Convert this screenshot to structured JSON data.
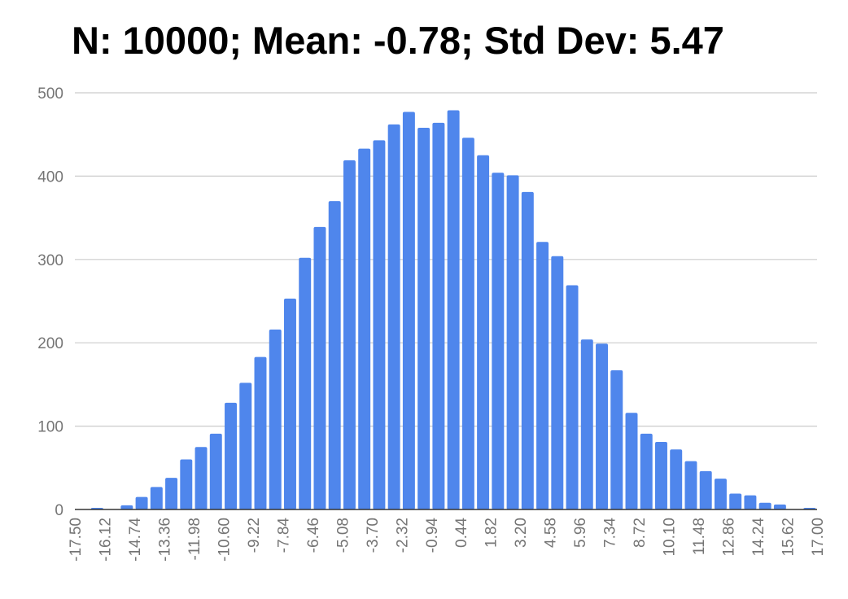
{
  "chart_data": {
    "type": "bar",
    "title": "N: 10000; Mean: -0.78; Std Dev: 5.47",
    "xlabel": "",
    "ylabel": "",
    "ylim": [
      0,
      500
    ],
    "yticks": [
      0,
      100,
      200,
      300,
      400,
      500
    ],
    "grid": true,
    "legend": "none",
    "bar_color": "#4F86EC",
    "grid_color": "#CCCCCC",
    "axis_color": "#333333",
    "x_range": [
      -17.5,
      17.0
    ],
    "bin_width": 0.69,
    "x_tick_labels": [
      "-17.50",
      "-16.12",
      "-14.74",
      "-13.36",
      "-11.98",
      "-10.60",
      "-9.22",
      "-7.84",
      "-6.46",
      "-5.08",
      "-3.70",
      "-2.32",
      "-0.94",
      "0.44",
      "1.82",
      "3.20",
      "4.58",
      "5.96",
      "7.34",
      "8.72",
      "10.10",
      "11.48",
      "12.86",
      "14.24",
      "15.62",
      "17.00"
    ],
    "values": [
      0,
      2,
      0,
      5,
      15,
      27,
      38,
      60,
      75,
      91,
      128,
      152,
      183,
      216,
      253,
      302,
      339,
      370,
      419,
      433,
      443,
      462,
      477,
      458,
      464,
      479,
      446,
      425,
      404,
      401,
      381,
      321,
      304,
      269,
      204,
      199,
      167,
      116,
      91,
      81,
      72,
      58,
      46,
      37,
      19,
      17,
      8,
      6,
      0,
      2
    ]
  }
}
